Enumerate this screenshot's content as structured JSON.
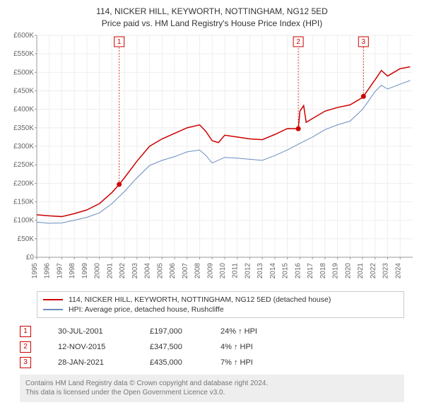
{
  "title_line1": "114, NICKER HILL, KEYWORTH, NOTTINGHAM, NG12 5ED",
  "title_line2": "Price paid vs. HM Land Registry's House Price Index (HPI)",
  "chart": {
    "type": "line",
    "x_start_year": 1995,
    "x_end_year": 2025,
    "ylim": [
      0,
      600000
    ],
    "ytick_step": 50000,
    "y_labels": [
      "£0",
      "£50K",
      "£100K",
      "£150K",
      "£200K",
      "£250K",
      "£300K",
      "£350K",
      "£400K",
      "£450K",
      "£500K",
      "£550K",
      "£600K"
    ],
    "x_labels": [
      "1995",
      "1996",
      "1997",
      "1998",
      "1999",
      "2000",
      "2001",
      "2002",
      "2003",
      "2004",
      "2005",
      "2006",
      "2007",
      "2008",
      "2009",
      "2010",
      "2011",
      "2012",
      "2013",
      "2014",
      "2015",
      "2016",
      "2017",
      "2018",
      "2019",
      "2020",
      "2021",
      "2022",
      "2023",
      "2024"
    ],
    "grid_color": "#eeeeee",
    "axis_color": "#999999",
    "background_color": "#ffffff",
    "series": [
      {
        "name": "price_paid",
        "label": "114, NICKER HILL, KEYWORTH, NOTTINGHAM, NG12 5ED (detached house)",
        "color": "#cc0000",
        "width": 1.5,
        "points": [
          [
            1995.0,
            115000
          ],
          [
            1996.0,
            112000
          ],
          [
            1997.0,
            110000
          ],
          [
            1998.0,
            118000
          ],
          [
            1999.0,
            128000
          ],
          [
            2000.0,
            145000
          ],
          [
            2001.0,
            175000
          ],
          [
            2001.58,
            197000
          ],
          [
            2002.0,
            215000
          ],
          [
            2003.0,
            260000
          ],
          [
            2004.0,
            300000
          ],
          [
            2005.0,
            320000
          ],
          [
            2006.0,
            335000
          ],
          [
            2007.0,
            350000
          ],
          [
            2008.0,
            358000
          ],
          [
            2008.5,
            340000
          ],
          [
            2009.0,
            315000
          ],
          [
            2009.5,
            310000
          ],
          [
            2010.0,
            330000
          ],
          [
            2011.0,
            325000
          ],
          [
            2012.0,
            320000
          ],
          [
            2013.0,
            318000
          ],
          [
            2014.0,
            332000
          ],
          [
            2015.0,
            348000
          ],
          [
            2015.87,
            347500
          ],
          [
            2016.0,
            395000
          ],
          [
            2016.3,
            410000
          ],
          [
            2016.5,
            365000
          ],
          [
            2017.0,
            375000
          ],
          [
            2018.0,
            395000
          ],
          [
            2019.0,
            405000
          ],
          [
            2020.0,
            412000
          ],
          [
            2021.0,
            432000
          ],
          [
            2021.07,
            435000
          ],
          [
            2022.0,
            480000
          ],
          [
            2022.5,
            505000
          ],
          [
            2023.0,
            490000
          ],
          [
            2023.5,
            500000
          ],
          [
            2024.0,
            510000
          ],
          [
            2024.8,
            515000
          ]
        ]
      },
      {
        "name": "hpi",
        "label": "HPI: Average price, detached house, Rushcliffe",
        "color": "#6a8bc0",
        "width": 1,
        "points": [
          [
            1995.0,
            95000
          ],
          [
            1996.0,
            92000
          ],
          [
            1997.0,
            93000
          ],
          [
            1998.0,
            100000
          ],
          [
            1999.0,
            108000
          ],
          [
            2000.0,
            120000
          ],
          [
            2001.0,
            145000
          ],
          [
            2002.0,
            178000
          ],
          [
            2003.0,
            215000
          ],
          [
            2004.0,
            248000
          ],
          [
            2005.0,
            262000
          ],
          [
            2006.0,
            272000
          ],
          [
            2007.0,
            285000
          ],
          [
            2008.0,
            290000
          ],
          [
            2008.5,
            275000
          ],
          [
            2009.0,
            255000
          ],
          [
            2010.0,
            270000
          ],
          [
            2011.0,
            268000
          ],
          [
            2012.0,
            265000
          ],
          [
            2013.0,
            262000
          ],
          [
            2014.0,
            275000
          ],
          [
            2015.0,
            290000
          ],
          [
            2016.0,
            308000
          ],
          [
            2017.0,
            325000
          ],
          [
            2018.0,
            345000
          ],
          [
            2019.0,
            358000
          ],
          [
            2020.0,
            368000
          ],
          [
            2021.0,
            400000
          ],
          [
            2022.0,
            448000
          ],
          [
            2022.5,
            465000
          ],
          [
            2023.0,
            455000
          ],
          [
            2024.0,
            468000
          ],
          [
            2024.8,
            478000
          ]
        ]
      }
    ],
    "markers": [
      {
        "n": "1",
        "year": 2001.58,
        "price": 197000
      },
      {
        "n": "2",
        "year": 2015.87,
        "price": 347500
      },
      {
        "n": "3",
        "year": 2021.07,
        "price": 435000
      }
    ]
  },
  "legend": [
    {
      "color": "#cc0000",
      "label": "114, NICKER HILL, KEYWORTH, NOTTINGHAM, NG12 5ED (detached house)"
    },
    {
      "color": "#6a8bc0",
      "label": "HPI: Average price, detached house, Rushcliffe"
    }
  ],
  "events": [
    {
      "n": "1",
      "date": "30-JUL-2001",
      "price": "£197,000",
      "diff": "24% ↑ HPI"
    },
    {
      "n": "2",
      "date": "12-NOV-2015",
      "price": "£347,500",
      "diff": "4% ↑ HPI"
    },
    {
      "n": "3",
      "date": "28-JAN-2021",
      "price": "£435,000",
      "diff": "7% ↑ HPI"
    }
  ],
  "footnote_line1": "Contains HM Land Registry data © Crown copyright and database right 2024.",
  "footnote_line2": "This data is licensed under the Open Government Licence v3.0."
}
